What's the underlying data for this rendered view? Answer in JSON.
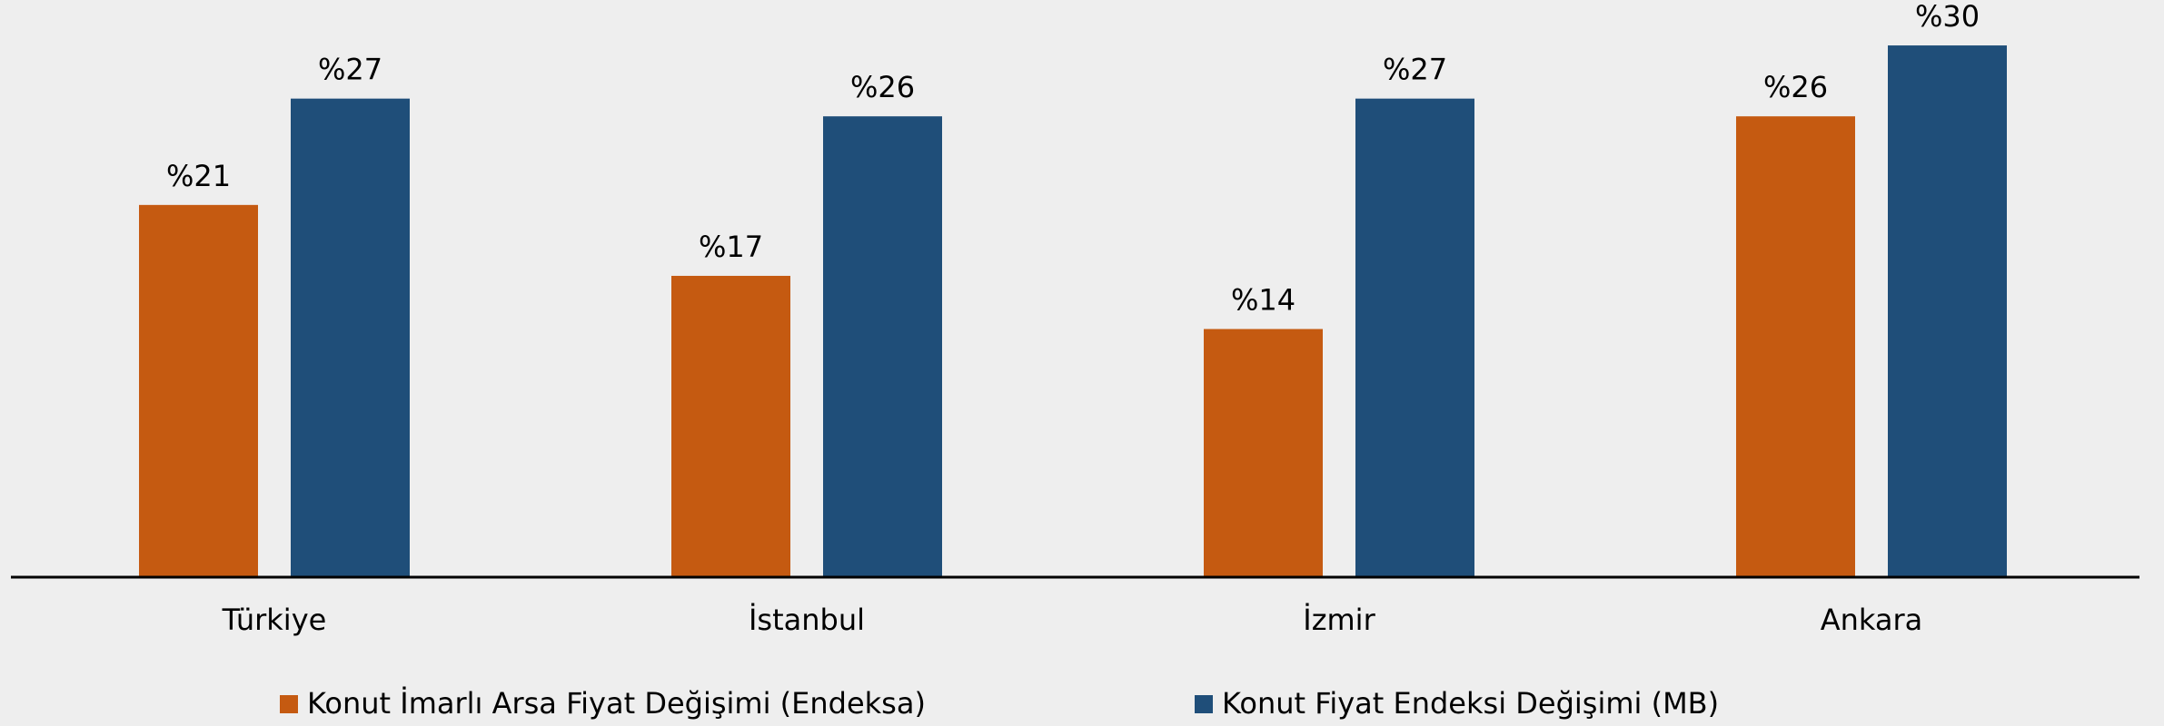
{
  "chart_data": {
    "type": "bar",
    "categories": [
      "Türkiye",
      "İstanbul",
      "İzmir",
      "Ankara"
    ],
    "series": [
      {
        "name": "Konut İmarlı Arsa Fiyat Değişimi (Endeksa)",
        "color": "#c55a11",
        "values": [
          21,
          17,
          14,
          26
        ],
        "value_labels": [
          "%21",
          "%17",
          "%14",
          "%26"
        ]
      },
      {
        "name": "Konut Fiyat Endeksi Değişimi (MB)",
        "color": "#1f4e79",
        "values": [
          27,
          26,
          27,
          30
        ],
        "value_labels": [
          "%27",
          "%26",
          "%27",
          "%30"
        ]
      }
    ],
    "ylim": [
      0,
      32
    ],
    "grid": false,
    "legend": "bottom"
  }
}
